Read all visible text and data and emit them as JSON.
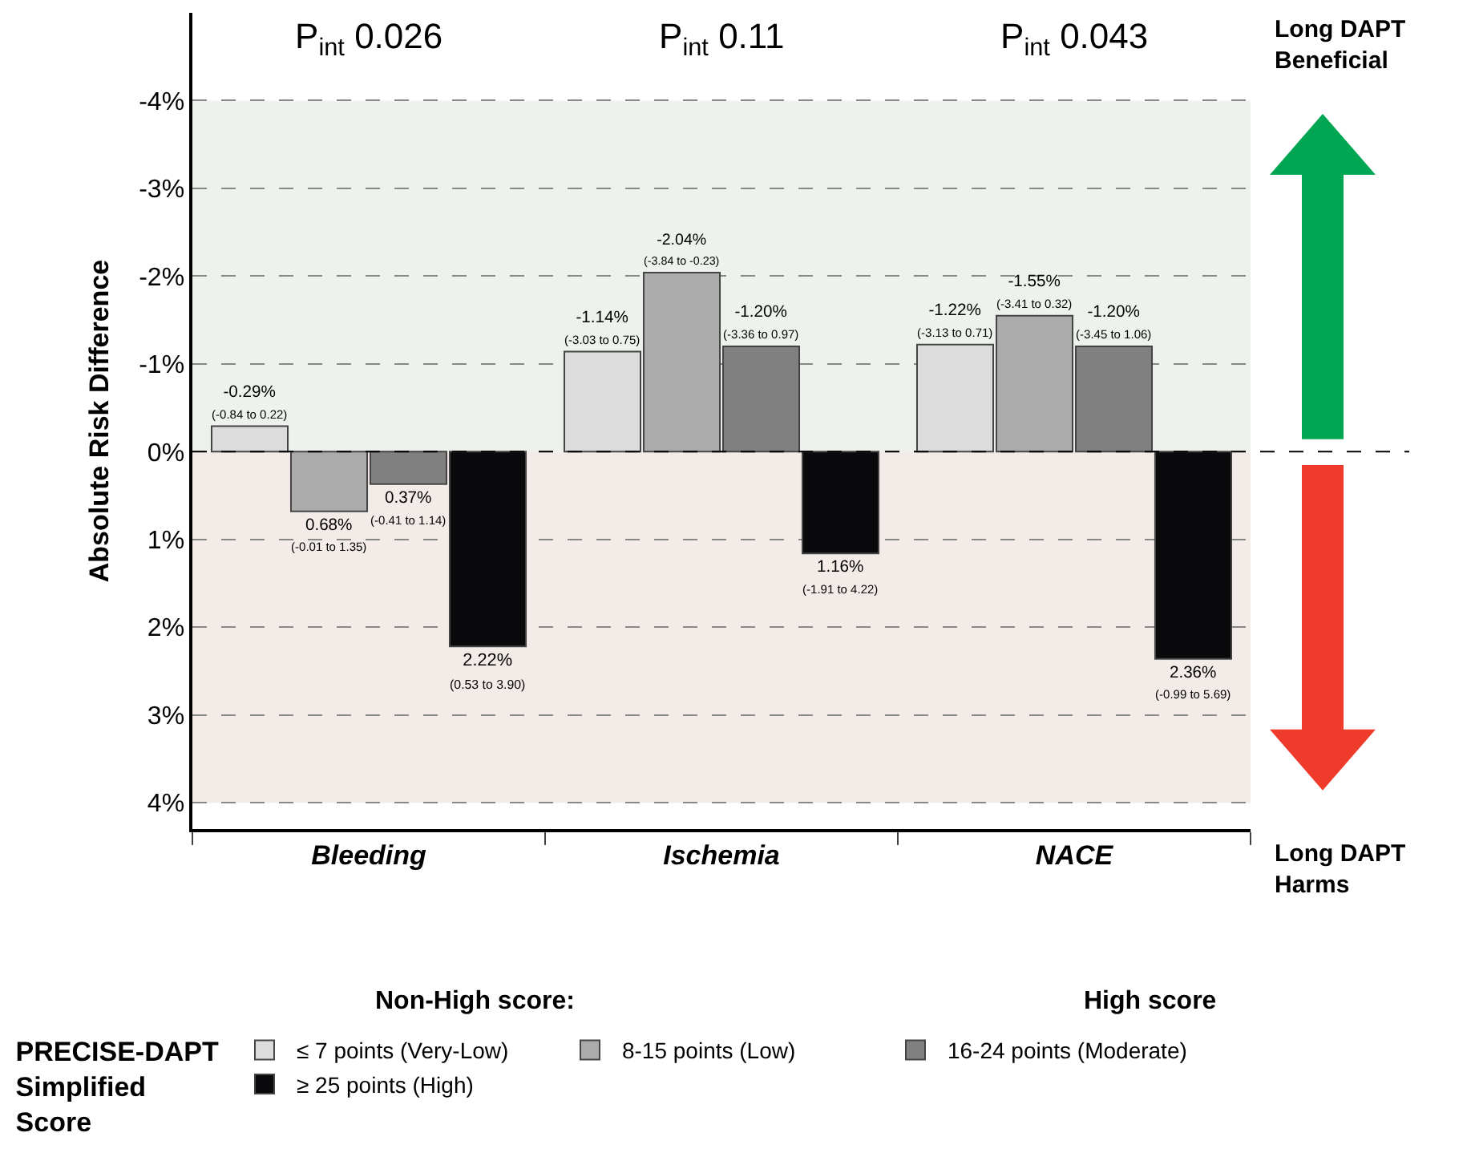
{
  "chart_data": {
    "type": "bar",
    "ylabel": "Absolute Risk Difference",
    "legend_title": "PRECISE-DAPT Simplified Score",
    "categories": [
      "Bleeding",
      "Ischemia",
      "NACE"
    ],
    "series": [
      {
        "name": "≤ 7 points (Very-Low)",
        "color": "#dcdcdc",
        "values": [
          -0.29,
          -1.14,
          -1.22
        ],
        "value_labels": [
          "-0.29%\n(-0.84 to 0.22)",
          "-1.14%\n(-3.03 to 0.75)",
          "-1.22%\n(-3.13 to 0.71)"
        ]
      },
      {
        "name": "8-15 points (Low)",
        "color": "#ababab",
        "values": [
          0.68,
          -2.04,
          -1.55
        ],
        "value_labels": [
          "0.68%\n(-0.01 to 1.35)",
          "-2.04%\n(-3.84 to -0.23)",
          "-1.55%\n(-3.41 to 0.32)"
        ]
      },
      {
        "name": "16-24 points (Moderate)",
        "color": "#808080",
        "values": [
          0.37,
          -1.2,
          -1.2
        ],
        "value_labels": [
          "0.37%\n(-0.41 to 1.14)",
          "-1.20%\n(-3.36 to 0.97)",
          "-1.20%\n(-3.45 to 1.06)"
        ]
      },
      {
        "name": "≥ 25 points (High)",
        "color": "#0a0a0c",
        "values": [
          2.22,
          1.16,
          2.36
        ],
        "value_labels": [
          "2.22%\n(0.53 to 3.90)",
          "1.16%\n(-1.91 to 4.22)",
          "2.36%\n(-0.99 to 5.69)"
        ]
      }
    ],
    "ylim": [
      4.3,
      -5
    ],
    "yticks": [
      {
        "value": -4,
        "label": "-4%"
      },
      {
        "value": -3,
        "label": "-3%"
      },
      {
        "value": -2,
        "label": "-2%"
      },
      {
        "value": -1,
        "label": "-1%"
      },
      {
        "value": 0,
        "label": "0%"
      },
      {
        "value": 1,
        "label": "1%"
      },
      {
        "value": 2,
        "label": "2%"
      },
      {
        "value": 3,
        "label": "3%"
      },
      {
        "value": 4,
        "label": "4%"
      }
    ],
    "grid": "y",
    "bands": [
      {
        "axis": "y",
        "from": -4,
        "to": 0,
        "color": "#edf3ec"
      },
      {
        "axis": "y",
        "from": 0,
        "to": 4,
        "color": "#f3ebe8"
      }
    ],
    "ref_lines": [
      {
        "axis": "y",
        "value": 0,
        "line_style": "dashed",
        "color": "#000000"
      }
    ],
    "annotations": [
      "P$_{int}$ 0.026",
      "P$_{int}$ 0.11",
      "P$_{int}$ 0.043",
      "Long DAPT Beneficial",
      "Long DAPT Harms",
      "Non-High score:",
      "High score"
    ],
    "legend": "bottom"
  }
}
